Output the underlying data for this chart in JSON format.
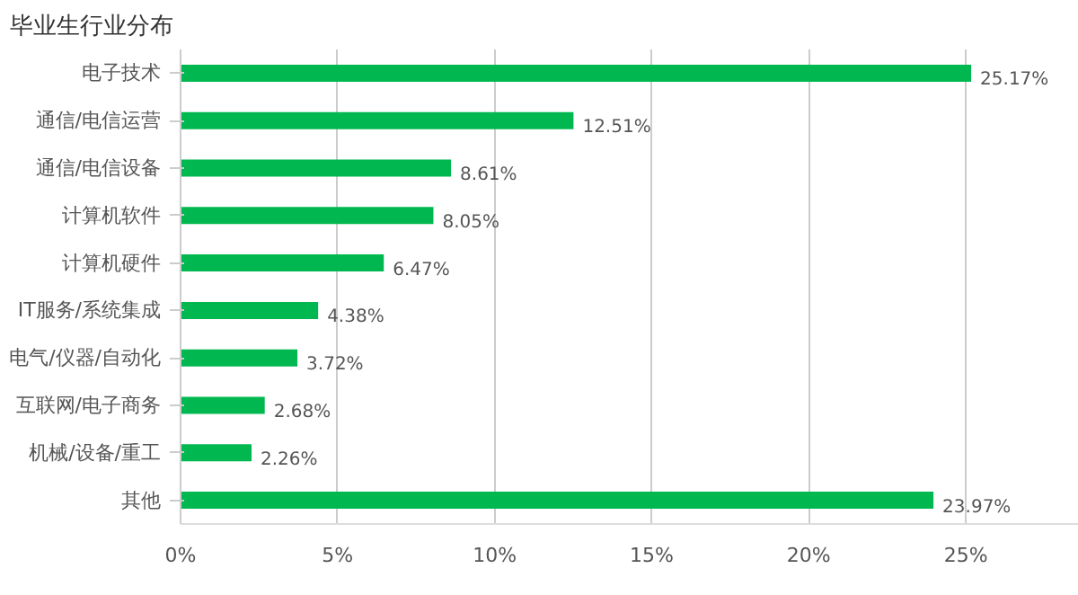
{
  "chart_data": {
    "type": "bar",
    "orientation": "horizontal",
    "title": "毕业生行业分布",
    "categories": [
      "电子技术",
      "通信/电信运营",
      "通信/电信设备",
      "计算机软件",
      "计算机硬件",
      "IT服务/系统集成",
      "电气/仪器/自动化",
      "互联网/电子商务",
      "机械/设备/重工",
      "其他"
    ],
    "series": [
      {
        "color": "#00b84f",
        "values": [
          25.17,
          12.51,
          8.61,
          8.05,
          6.47,
          4.38,
          3.72,
          2.68,
          2.26,
          23.97
        ],
        "value_labels": [
          "25.17%",
          "12.51%",
          "8.61%",
          "8.05%",
          "6.47%",
          "4.38%",
          "3.72%",
          "2.68%",
          "2.26%",
          "23.97%"
        ]
      }
    ],
    "xlim": [
      0,
      28.6
    ],
    "xticks": [
      {
        "value": 0,
        "label": "0%"
      },
      {
        "value": 5,
        "label": "5%"
      },
      {
        "value": 10,
        "label": "10%"
      },
      {
        "value": 15,
        "label": "15%"
      },
      {
        "value": 20,
        "label": "20%"
      },
      {
        "value": 25,
        "label": "25%"
      }
    ],
    "grid": "x"
  }
}
